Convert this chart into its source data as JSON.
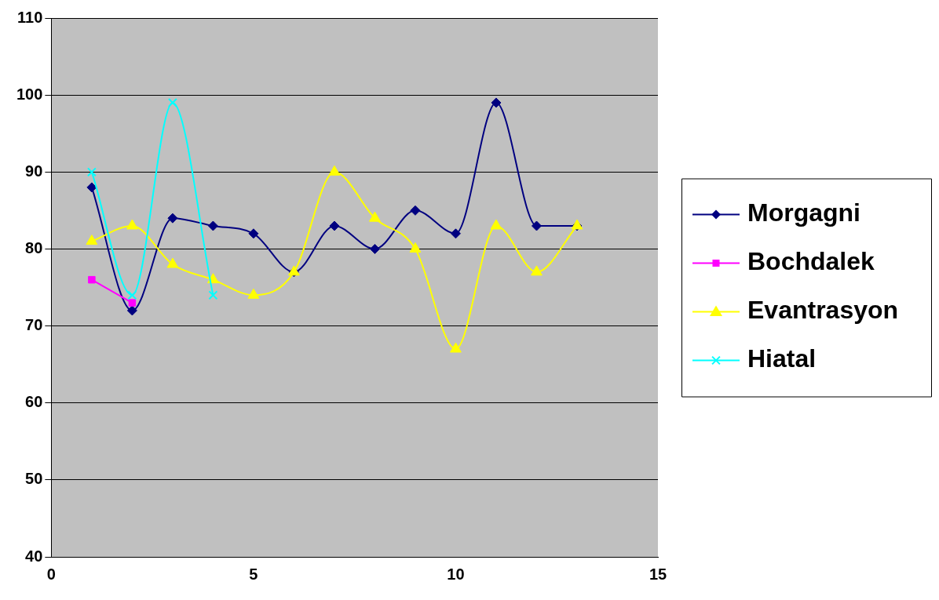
{
  "chart_data": {
    "type": "line",
    "xlim": [
      0,
      15
    ],
    "xticks": [
      0,
      5,
      10,
      15
    ],
    "ylim": [
      40,
      110
    ],
    "yticks": [
      40,
      50,
      60,
      70,
      80,
      90,
      100,
      110
    ],
    "grid": "y",
    "legend": "right",
    "series": [
      {
        "name": "Morgagni",
        "color": "#000080",
        "marker": "diamond",
        "x": [
          1,
          2,
          3,
          4,
          5,
          6,
          7,
          8,
          9,
          10,
          11,
          12,
          13
        ],
        "values": [
          88,
          72,
          84,
          83,
          82,
          77,
          83,
          80,
          85,
          82,
          99,
          83,
          83
        ]
      },
      {
        "name": "Bochdalek",
        "color": "#ff00ff",
        "marker": "square",
        "x": [
          1,
          2
        ],
        "values": [
          76,
          73
        ]
      },
      {
        "name": "Evantrasyon",
        "color": "#ffff00",
        "marker": "triangle",
        "x": [
          1,
          2,
          3,
          4,
          5,
          6,
          7,
          8,
          9,
          10,
          11,
          12,
          13
        ],
        "values": [
          81,
          83,
          78,
          76,
          74,
          77,
          90,
          84,
          80,
          67,
          83,
          77,
          83
        ]
      },
      {
        "name": "Hiatal",
        "color": "#00ffff",
        "marker": "cross",
        "x": [
          1,
          2,
          3,
          4
        ],
        "values": [
          90,
          74,
          99,
          74
        ]
      }
    ]
  }
}
